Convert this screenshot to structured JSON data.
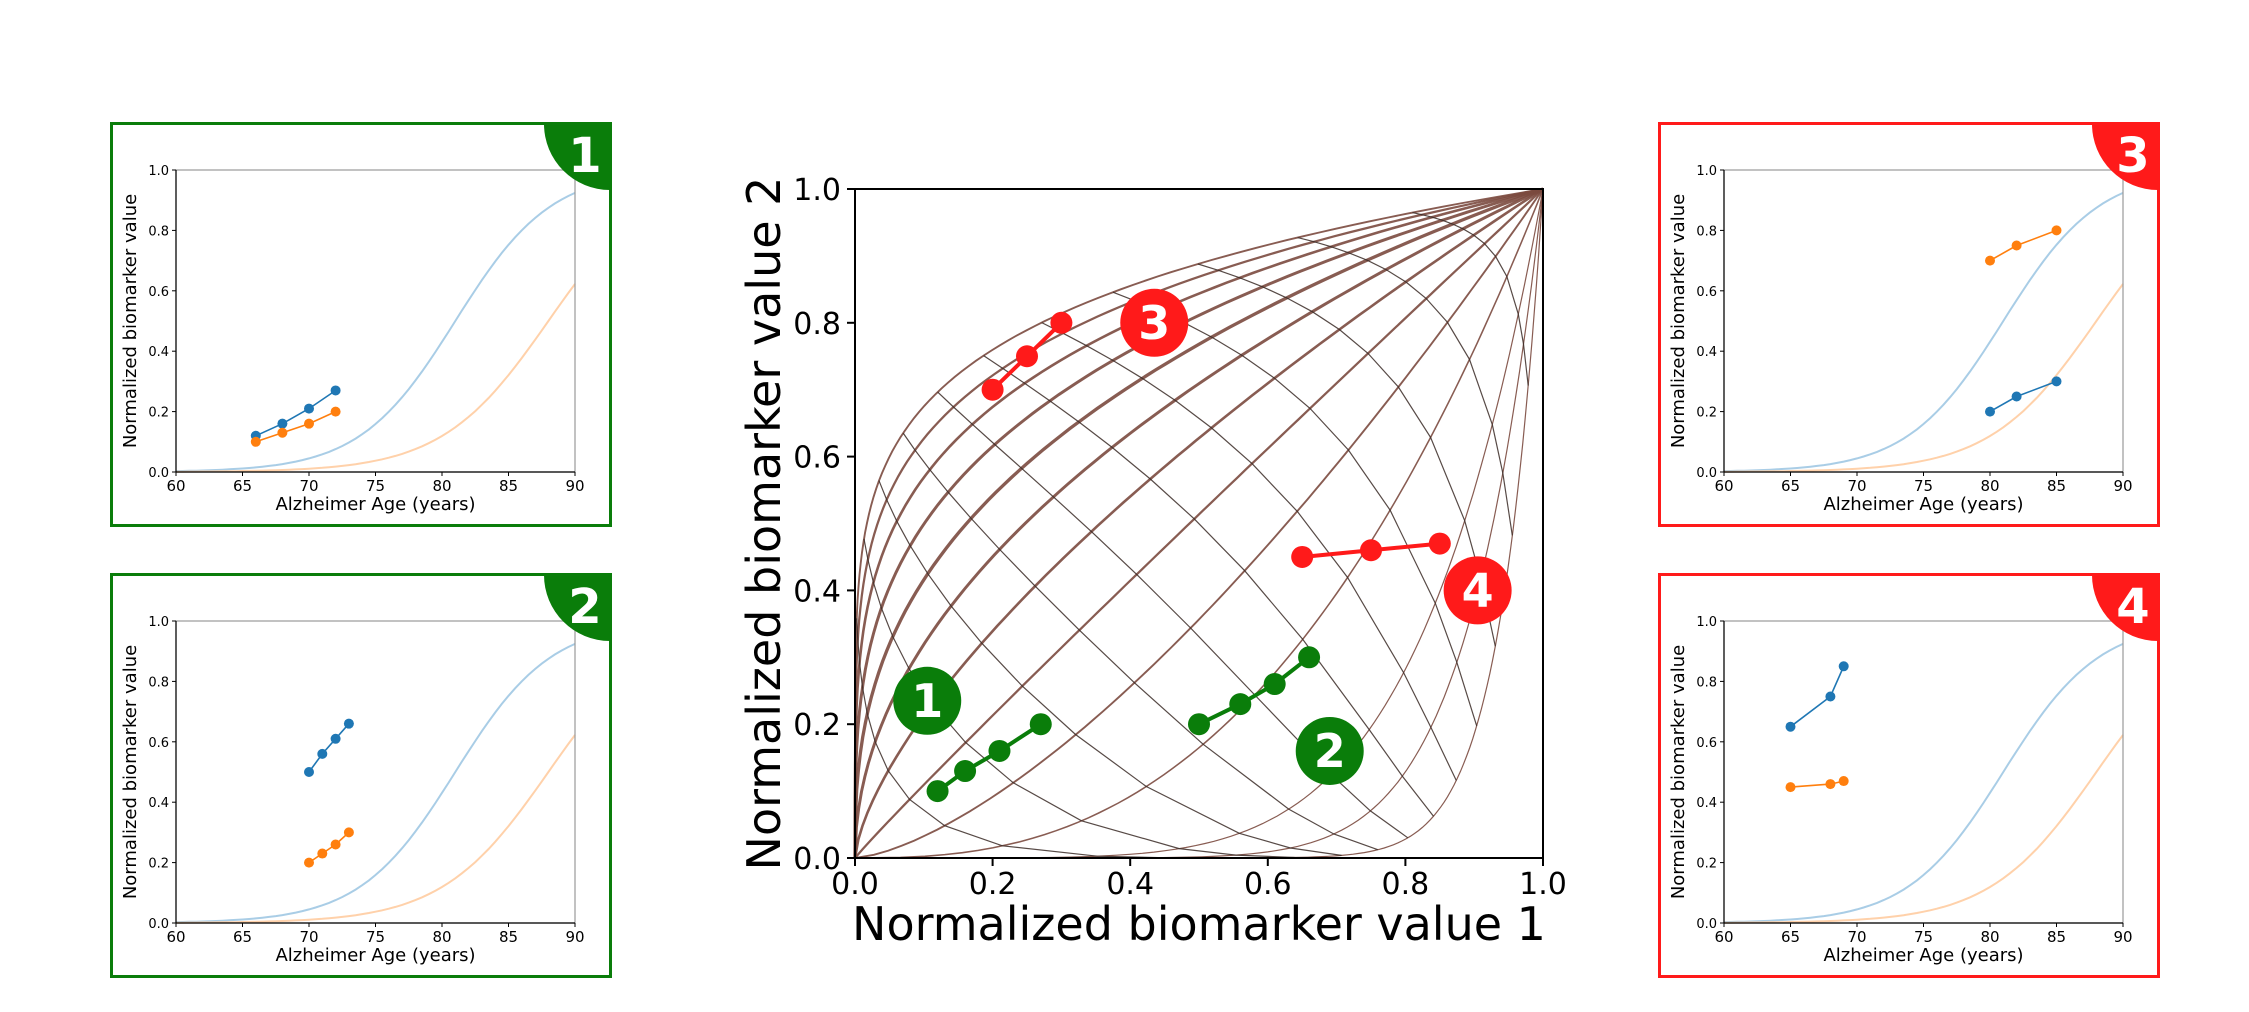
{
  "colors": {
    "green": "#0a7d0a",
    "red": "#ff1a1a",
    "blue": "#1f77b4",
    "orange": "#ff7f0e",
    "grid": "#7b4a3f",
    "light_blue": "#a9cde6",
    "light_orange": "#ffd1aa"
  },
  "chart_data": [
    {
      "id": "central",
      "type": "scatter",
      "xlabel": "Normalized biomarker value 1",
      "ylabel": "Normalized biomarker value 2",
      "xlim": [
        0,
        1
      ],
      "ylim": [
        0,
        1
      ],
      "xticks": [
        "0.0",
        "0.2",
        "0.4",
        "0.6",
        "0.8",
        "1.0"
      ],
      "yticks": [
        "0.0",
        "0.2",
        "0.4",
        "0.6",
        "0.8",
        "1.0"
      ],
      "series": [
        {
          "badge": "1",
          "color": "green",
          "x": [
            0.12,
            0.16,
            0.21,
            0.27
          ],
          "y": [
            0.1,
            0.13,
            0.16,
            0.2
          ]
        },
        {
          "badge": "2",
          "color": "green",
          "x": [
            0.5,
            0.56,
            0.61,
            0.66
          ],
          "y": [
            0.2,
            0.23,
            0.26,
            0.3
          ]
        },
        {
          "badge": "3",
          "color": "red",
          "x": [
            0.2,
            0.25,
            0.3
          ],
          "y": [
            0.7,
            0.75,
            0.8
          ]
        },
        {
          "badge": "4",
          "color": "red",
          "x": [
            0.65,
            0.75,
            0.85
          ],
          "y": [
            0.45,
            0.46,
            0.47
          ]
        }
      ],
      "badges": [
        {
          "label": "1",
          "color": "green",
          "x": 0.105,
          "y": 0.235
        },
        {
          "label": "2",
          "color": "green",
          "x": 0.69,
          "y": 0.16
        },
        {
          "label": "3",
          "color": "red",
          "x": 0.435,
          "y": 0.8
        },
        {
          "label": "4",
          "color": "red",
          "x": 0.905,
          "y": 0.4
        }
      ]
    },
    {
      "id": "panel-1",
      "type": "line",
      "badge": "1",
      "frame": "green",
      "xlabel": "Alzheimer Age (years)",
      "ylabel": "Normalized biomarker value",
      "xlim": [
        60,
        90
      ],
      "ylim": [
        0,
        1
      ],
      "xticks": [
        "60",
        "65",
        "70",
        "75",
        "80",
        "85",
        "90"
      ],
      "yticks": [
        "0.0",
        "0.2",
        "0.4",
        "0.6",
        "0.8",
        "1.0"
      ],
      "series": [
        {
          "color": "blue",
          "x": [
            66,
            68,
            70,
            72
          ],
          "y": [
            0.12,
            0.16,
            0.21,
            0.27
          ]
        },
        {
          "color": "orange",
          "x": [
            66,
            68,
            70,
            72
          ],
          "y": [
            0.1,
            0.13,
            0.16,
            0.2
          ]
        }
      ]
    },
    {
      "id": "panel-2",
      "type": "line",
      "badge": "2",
      "frame": "green",
      "xlabel": "Alzheimer Age (years)",
      "ylabel": "Normalized biomarker value",
      "xlim": [
        60,
        90
      ],
      "ylim": [
        0,
        1
      ],
      "xticks": [
        "60",
        "65",
        "70",
        "75",
        "80",
        "85",
        "90"
      ],
      "yticks": [
        "0.0",
        "0.2",
        "0.4",
        "0.6",
        "0.8",
        "1.0"
      ],
      "series": [
        {
          "color": "blue",
          "x": [
            70,
            71,
            72,
            73
          ],
          "y": [
            0.5,
            0.56,
            0.61,
            0.66
          ]
        },
        {
          "color": "orange",
          "x": [
            70,
            71,
            72,
            73
          ],
          "y": [
            0.2,
            0.23,
            0.26,
            0.3
          ]
        }
      ]
    },
    {
      "id": "panel-3",
      "type": "line",
      "badge": "3",
      "frame": "red",
      "xlabel": "Alzheimer Age (years)",
      "ylabel": "Normalized biomarker value",
      "xlim": [
        60,
        90
      ],
      "ylim": [
        0,
        1
      ],
      "xticks": [
        "60",
        "65",
        "70",
        "75",
        "80",
        "85",
        "90"
      ],
      "yticks": [
        "0.0",
        "0.2",
        "0.4",
        "0.6",
        "0.8",
        "1.0"
      ],
      "series": [
        {
          "color": "blue",
          "x": [
            80,
            82,
            85
          ],
          "y": [
            0.2,
            0.25,
            0.3
          ]
        },
        {
          "color": "orange",
          "x": [
            80,
            82,
            85
          ],
          "y": [
            0.7,
            0.75,
            0.8
          ]
        }
      ]
    },
    {
      "id": "panel-4",
      "type": "line",
      "badge": "4",
      "frame": "red",
      "xlabel": "Alzheimer Age (years)",
      "ylabel": "Normalized biomarker value",
      "xlim": [
        60,
        90
      ],
      "ylim": [
        0,
        1
      ],
      "xticks": [
        "60",
        "65",
        "70",
        "75",
        "80",
        "85",
        "90"
      ],
      "yticks": [
        "0.0",
        "0.2",
        "0.4",
        "0.6",
        "0.8",
        "1.0"
      ],
      "series": [
        {
          "color": "blue",
          "x": [
            65,
            68,
            69
          ],
          "y": [
            0.65,
            0.75,
            0.85
          ]
        },
        {
          "color": "orange",
          "x": [
            65,
            68,
            69
          ],
          "y": [
            0.45,
            0.46,
            0.47
          ]
        }
      ]
    }
  ]
}
